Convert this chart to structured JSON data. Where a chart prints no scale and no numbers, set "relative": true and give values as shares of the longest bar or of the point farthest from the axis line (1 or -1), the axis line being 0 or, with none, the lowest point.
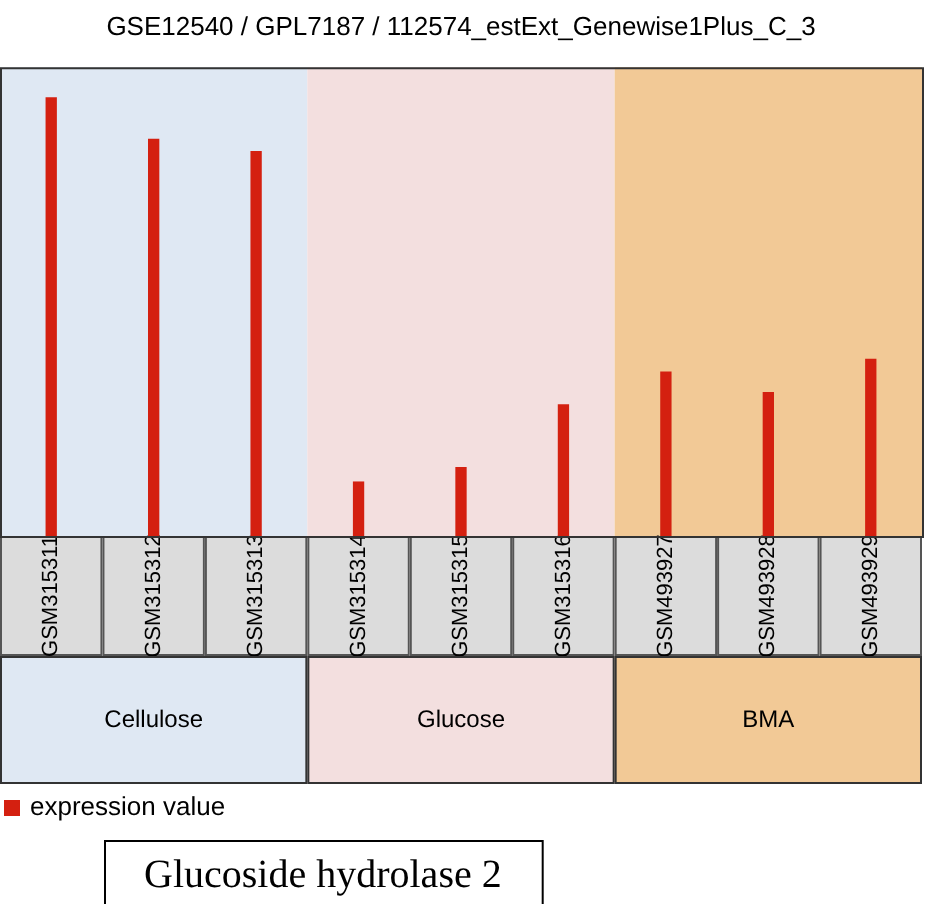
{
  "chart_data": {
    "type": "bar",
    "title": "GSE12540 / GPL7187 / 112574_estExt_Genewise1Plus_C_3",
    "relative": true,
    "categories": [
      "GSM315311",
      "GSM315312",
      "GSM315313",
      "GSM315314",
      "GSM315315",
      "GSM315316",
      "GSM493927",
      "GSM493928",
      "GSM493929"
    ],
    "series": [
      {
        "name": "expression value",
        "color": "#d42010",
        "values": [
          1,
          0.905,
          0.877,
          0.123,
          0.156,
          0.299,
          0.374,
          0.327,
          0.403
        ]
      }
    ],
    "bands": [
      {
        "axis": "x",
        "from": "GSM315311",
        "to": "GSM315313",
        "label": "Cellulose",
        "color": "#dfe8f3"
      },
      {
        "axis": "x",
        "from": "GSM315314",
        "to": "GSM315316",
        "label": "Glucose",
        "color": "#f3dfdf"
      },
      {
        "axis": "x",
        "from": "GSM493927",
        "to": "GSM493929",
        "label": "BMA",
        "color": "#f2c996"
      }
    ],
    "legend": "bottom left",
    "annotations": [
      "Glucoside hydrolase 2"
    ]
  }
}
